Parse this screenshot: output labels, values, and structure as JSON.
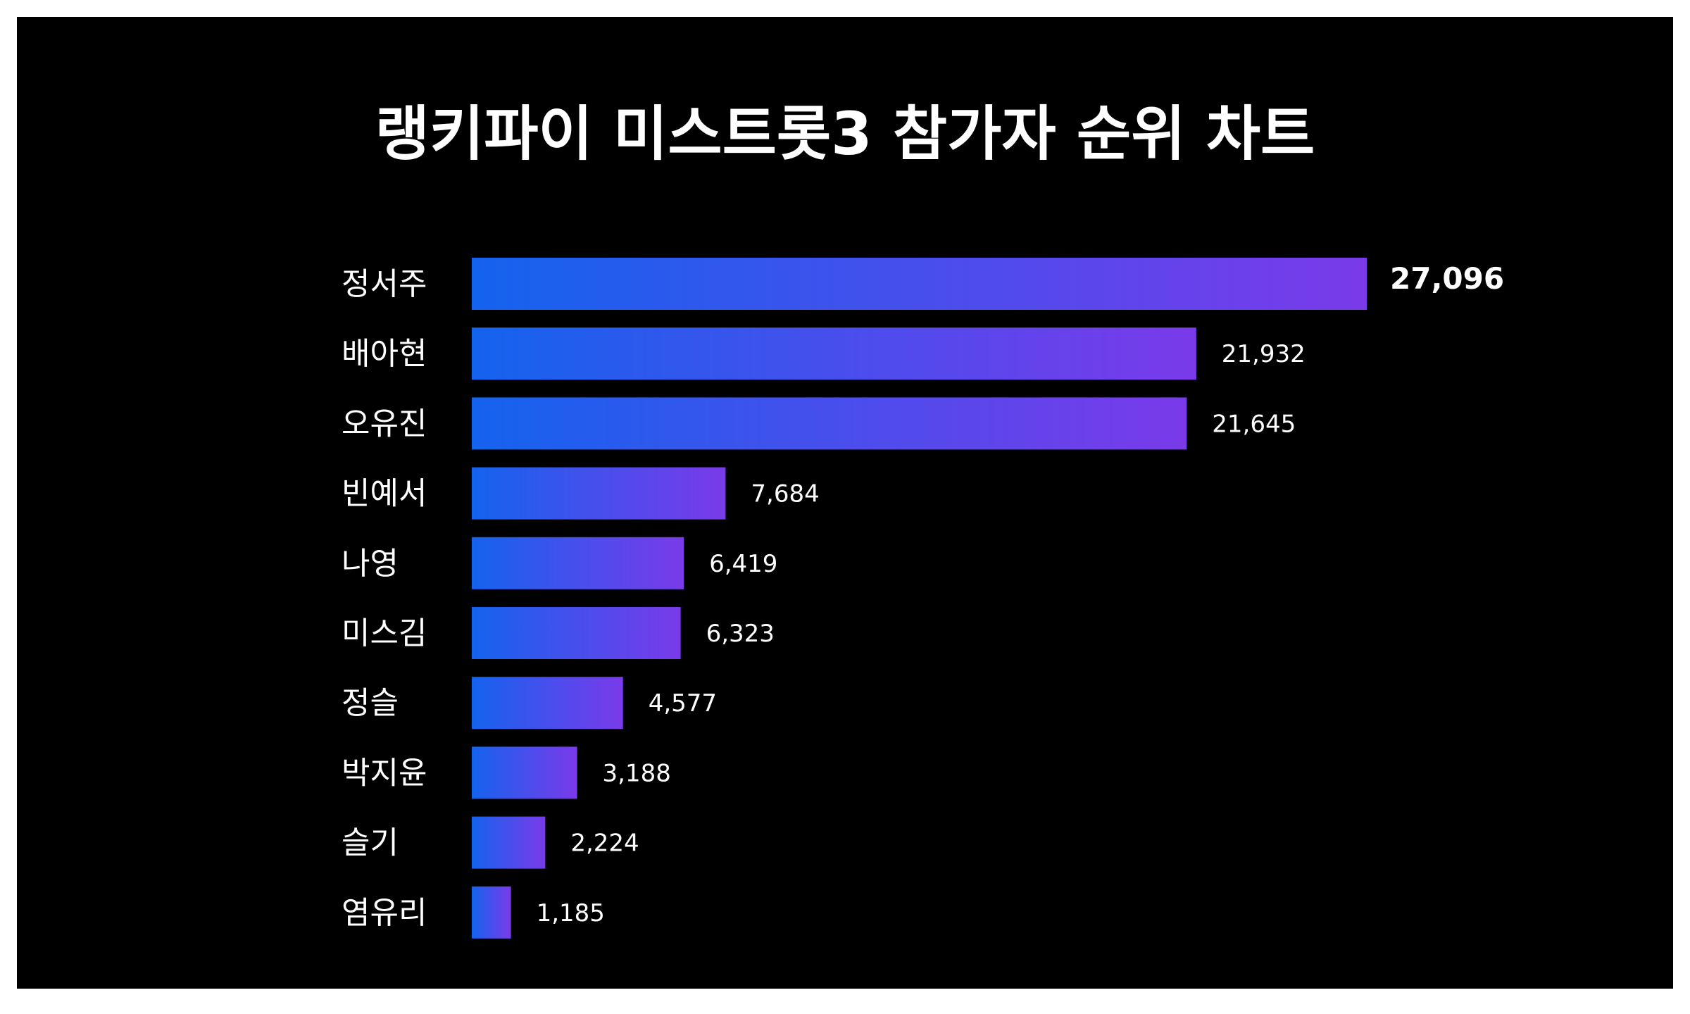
{
  "chart_data": {
    "type": "bar",
    "orientation": "horizontal",
    "title": "랭키파이 미스트롯3 참가자 순위 차트",
    "categories": [
      "정서주",
      "배아현",
      "오유진",
      "빈예서",
      "나영",
      "미스김",
      "정슬",
      "박지윤",
      "슬기",
      "염유리"
    ],
    "values": [
      27096,
      21932,
      21645,
      7684,
      6419,
      6323,
      4577,
      3188,
      2224,
      1185
    ],
    "value_labels": [
      "27,096",
      "21,932",
      "21,645",
      "7,684",
      "6,419",
      "6,323",
      "4,577",
      "3,188",
      "2,224",
      "1,185"
    ],
    "xlim": [
      0,
      27096
    ],
    "grid": false,
    "legend": "none",
    "colors": {
      "background": "#000000",
      "bar_gradient_start": "#1463ee",
      "bar_gradient_end": "#7a3aea",
      "text": "#ffffff"
    }
  }
}
